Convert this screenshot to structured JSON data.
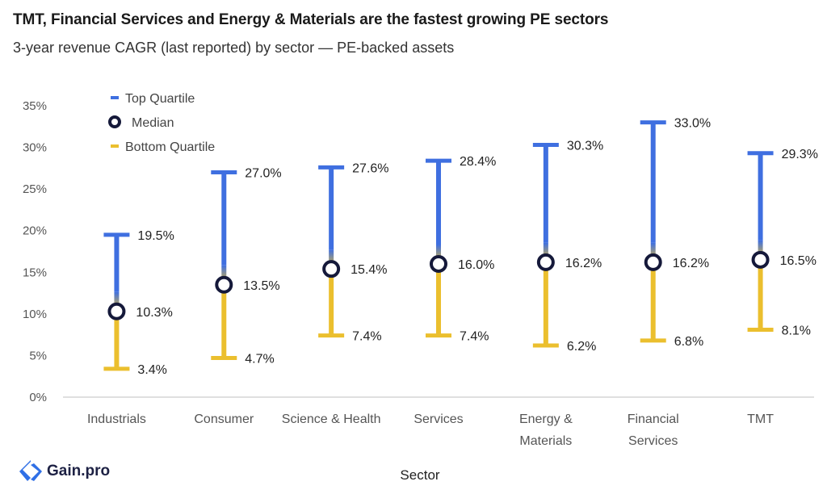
{
  "header": {
    "title": "TMT, Financial Services and Energy & Materials are the fastest growing PE sectors",
    "subtitle": "3-year revenue CAGR (last reported) by sector — PE-backed assets"
  },
  "brand": {
    "logo_text": "Gain.pro",
    "logo_color": "#2f6fe6"
  },
  "chart_data": {
    "type": "range",
    "xlabel": "Sector",
    "ylabel": "",
    "ylim": [
      0,
      35
    ],
    "yticks": [
      "0%",
      "5%",
      "10%",
      "15%",
      "20%",
      "25%",
      "30%",
      "35%"
    ],
    "grid": false,
    "legend": {
      "position": "top-left",
      "entries": [
        "Top Quartile",
        "Median",
        "Bottom Quartile"
      ]
    },
    "colors": {
      "top": "#3f6fe0",
      "bottom": "#ebbf2e",
      "median": "#15193a"
    },
    "categories": [
      [
        "Industrials"
      ],
      [
        "Consumer"
      ],
      [
        "Science & Health"
      ],
      [
        "Services"
      ],
      [
        "Energy &",
        "Materials"
      ],
      [
        "Financial",
        "Services"
      ],
      [
        "TMT"
      ]
    ],
    "series": [
      {
        "name": "Top Quartile",
        "values": [
          19.5,
          27.0,
          27.6,
          28.4,
          30.3,
          33.0,
          29.3
        ]
      },
      {
        "name": "Median",
        "values": [
          10.3,
          13.5,
          15.4,
          16.0,
          16.2,
          16.2,
          16.5
        ]
      },
      {
        "name": "Bottom Quartile",
        "values": [
          3.4,
          4.7,
          7.4,
          7.4,
          6.2,
          6.8,
          8.1
        ]
      }
    ]
  }
}
